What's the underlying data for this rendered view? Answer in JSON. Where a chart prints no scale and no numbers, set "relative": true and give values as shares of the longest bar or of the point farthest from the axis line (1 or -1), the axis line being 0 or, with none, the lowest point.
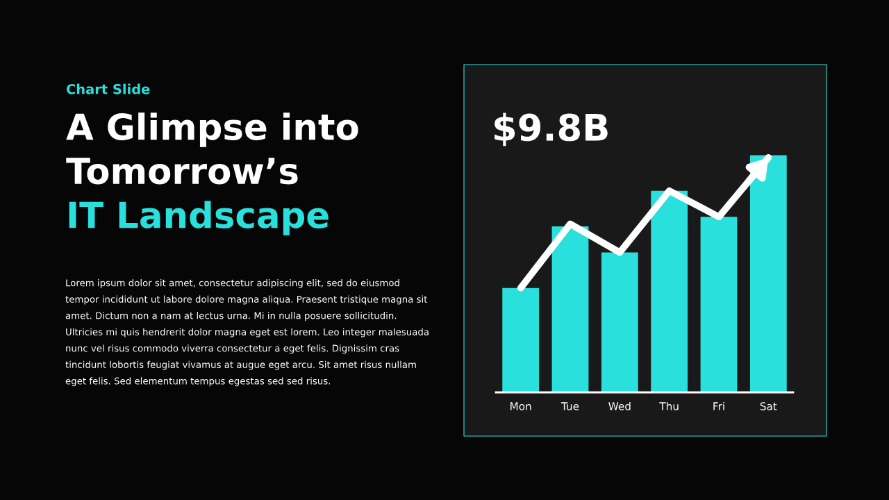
{
  "chart_data": {
    "type": "bar",
    "subtitle": "Chart Slide",
    "title": "A Glimpse into\nTomorrow’s\nIT Landscape",
    "categories": [
      "Mon",
      "Tue",
      "Wed",
      "Thu",
      "Fri",
      "Sat"
    ],
    "relative": true,
    "grid": false,
    "legend": false,
    "series": [
      {
        "color": "#2ae0dc",
        "values": [
          0.44,
          0.7,
          0.59,
          0.85,
          0.74,
          1.0
        ]
      },
      {
        "type": "line",
        "color": "#ffffff",
        "values": [
          0.44,
          0.71,
          0.59,
          0.85,
          0.74,
          0.99
        ]
      }
    ],
    "annotations": [
      "$9.8B",
      "Lorem ipsum dolor sit amet, consectetur adipiscing elit, sed do eiusmod\ntempor incididunt ut labore dolore magna aliqua. Praesent tristique magna sit\namet. Dictum non a nam at lectus urna. Mi in nulla posuere sollicitudin.\nUltricies mi quis hendrerit dolor magna eget est lorem. Leo integer malesuada\nnunc vel risus commodo viverra consectetur a eget felis. Dignissim cras\ntincidunt lobortis feugiat vivamus at augue eget arcu. Sit amet risus nullam\neget felis. Sed elementum tempus egestas sed sed risus."
    ]
  }
}
